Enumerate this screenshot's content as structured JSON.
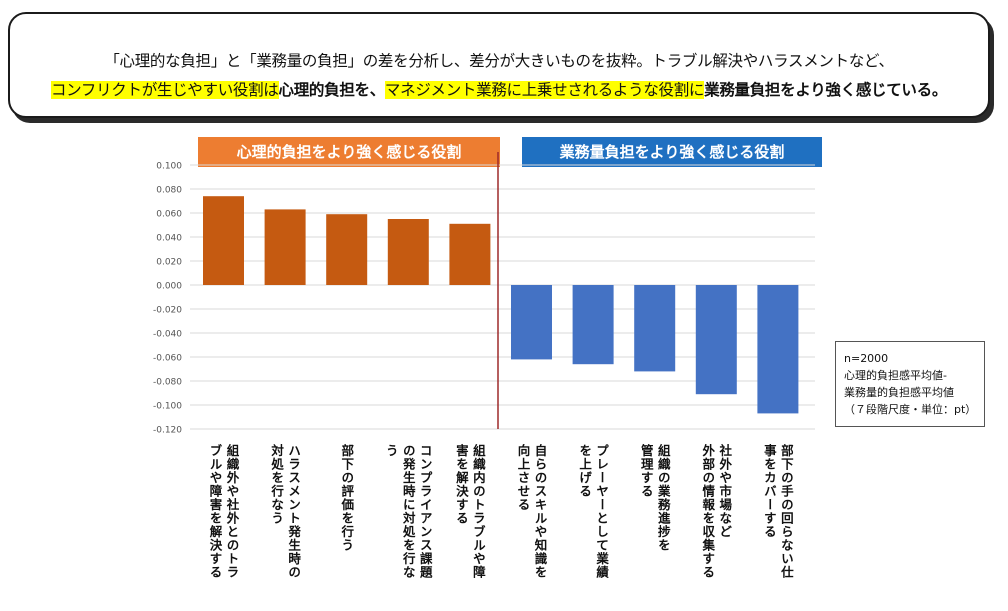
{
  "banner": {
    "line1": "「心理的な負担」と「業務量の負担」の差を分析し、差分が大きいものを抜粋。トラブル解決やハラスメントなど、",
    "line2_seg1": "コンフリクトが生じやすい役割は",
    "line2_seg2": "心理的負担を、",
    "line2_seg3": "マネジメント業務に上乗せされるような役割に",
    "line2_seg4": "業務量負担をより強く感じている。"
  },
  "headers": {
    "left": "心理的負担をより強く感じる役割",
    "right": "業務量負担をより強く感じる役割"
  },
  "note": {
    "line1": "n=2000",
    "line2": "心理的負担感平均値-",
    "line3": "業務量的負担感平均値",
    "line4": "（７段階尺度・単位：pt）"
  },
  "chart_data": {
    "type": "bar",
    "ylim": [
      -0.12,
      0.1
    ],
    "yticks": [
      "0.100",
      "0.080",
      "0.060",
      "0.040",
      "0.020",
      "0.000",
      "-0.020",
      "-0.040",
      "-0.060",
      "-0.080",
      "-0.100",
      "-0.120"
    ],
    "grid": true,
    "categories": [
      [
        "組織外や社外とのトラ",
        "ブルや障害を解決する"
      ],
      [
        "ハラスメント発生時の",
        "対処を行なう"
      ],
      [
        "部下の評価を行う"
      ],
      [
        "コンプライアンス課題",
        "の発生時に対処を行な",
        "う"
      ],
      [
        "組織内のトラブルや障",
        "害を解決する"
      ],
      [
        "自らのスキルや知識を",
        "向上させる"
      ],
      [
        "プレーヤーとして業績",
        "を上げる"
      ],
      [
        "組織の業務進捗を",
        "管理する"
      ],
      [
        "社外や市場など",
        "外部の情報を収集する"
      ],
      [
        "部下の手の回らない仕",
        "事をカバーする"
      ]
    ],
    "values": [
      0.074,
      0.063,
      0.059,
      0.055,
      0.051,
      -0.062,
      -0.066,
      -0.072,
      -0.091,
      -0.107
    ],
    "colors": {
      "positive": "#c55a11",
      "negative": "#4472c4",
      "divider": "#9e2a2a",
      "grid": "#d9d9d9"
    }
  }
}
